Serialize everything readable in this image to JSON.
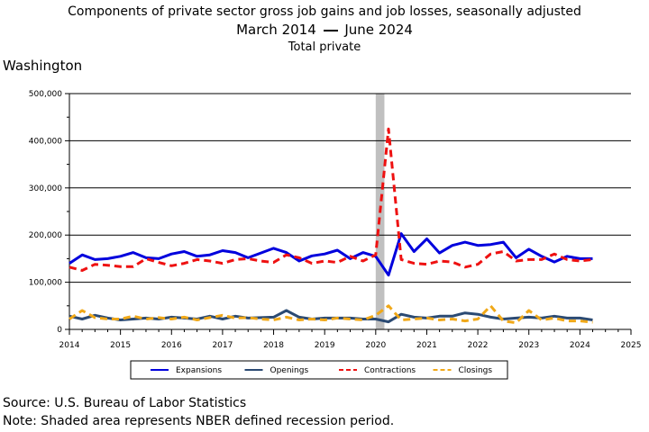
{
  "title": {
    "line1": "Components of private sector gross job gains and job losses, seasonally adjusted",
    "line2_start": "March 2014",
    "line2_end": "June 2024",
    "line3": "Total private"
  },
  "region": "Washington",
  "footer": {
    "source": "Source: U.S. Bureau of Labor Statistics",
    "note": "Note: Shaded area represents NBER defined recession period."
  },
  "colors": {
    "expansions": "#0000dd",
    "openings": "#2b4a73",
    "contractions": "#ee1111",
    "closings": "#f0a818",
    "recession": "#c0c0c0"
  },
  "chart_data": {
    "type": "line",
    "x_unit": "year",
    "xlim": [
      2014,
      2025
    ],
    "ylim": [
      0,
      500000
    ],
    "y_ticks": [
      "0",
      "100,000",
      "200,000",
      "300,000",
      "400,000",
      "500,000"
    ],
    "x_ticks": [
      "2014",
      "2015",
      "2016",
      "2017",
      "2018",
      "2019",
      "2020",
      "2021",
      "2022",
      "2023",
      "2024",
      "2025"
    ],
    "grid": "horizontal",
    "legend_position": "bottom",
    "recession_shading": [
      2020.0,
      2020.17
    ],
    "x": [
      2014.0,
      2014.25,
      2014.5,
      2014.75,
      2015.0,
      2015.25,
      2015.5,
      2015.75,
      2016.0,
      2016.25,
      2016.5,
      2016.75,
      2017.0,
      2017.25,
      2017.5,
      2017.75,
      2018.0,
      2018.25,
      2018.5,
      2018.75,
      2019.0,
      2019.25,
      2019.5,
      2019.75,
      2020.0,
      2020.25,
      2020.5,
      2020.75,
      2021.0,
      2021.25,
      2021.5,
      2021.75,
      2022.0,
      2022.25,
      2022.5,
      2022.75,
      2023.0,
      2023.25,
      2023.5,
      2023.75,
      2024.0,
      2024.25
    ],
    "series": [
      {
        "name": "Expansions",
        "style": "solid",
        "values": [
          140000,
          158000,
          148000,
          150000,
          155000,
          163000,
          152000,
          150000,
          160000,
          165000,
          155000,
          158000,
          167000,
          163000,
          152000,
          162000,
          172000,
          163000,
          145000,
          156000,
          160000,
          168000,
          150000,
          163000,
          155000,
          115000,
          203000,
          165000,
          192000,
          162000,
          178000,
          185000,
          178000,
          180000,
          185000,
          152000,
          170000,
          155000,
          143000,
          155000,
          150000,
          150000
        ]
      },
      {
        "name": "Openings",
        "style": "solid",
        "values": [
          28000,
          22000,
          30000,
          24000,
          20000,
          22000,
          24000,
          22000,
          26000,
          24000,
          22000,
          28000,
          22000,
          28000,
          24000,
          25000,
          26000,
          40000,
          26000,
          22000,
          24000,
          24000,
          24000,
          22000,
          22000,
          16000,
          32000,
          26000,
          24000,
          28000,
          28000,
          35000,
          32000,
          26000,
          22000,
          24000,
          26000,
          24000,
          28000,
          24000,
          24000,
          20000
        ]
      },
      {
        "name": "Contractions",
        "style": "dashed",
        "values": [
          132000,
          125000,
          138000,
          136000,
          133000,
          133000,
          150000,
          142000,
          135000,
          140000,
          148000,
          145000,
          140000,
          148000,
          150000,
          145000,
          142000,
          158000,
          152000,
          140000,
          145000,
          142000,
          155000,
          145000,
          158000,
          425000,
          148000,
          140000,
          138000,
          145000,
          143000,
          132000,
          138000,
          160000,
          165000,
          145000,
          148000,
          148000,
          160000,
          148000,
          145000,
          148000
        ]
      },
      {
        "name": "Closings",
        "style": "dashed",
        "values": [
          22000,
          40000,
          25000,
          22000,
          22000,
          28000,
          22000,
          25000,
          22000,
          26000,
          20000,
          25000,
          30000,
          24000,
          25000,
          22000,
          20000,
          26000,
          20000,
          22000,
          20000,
          24000,
          22000,
          20000,
          30000,
          50000,
          20000,
          22000,
          24000,
          20000,
          22000,
          18000,
          22000,
          50000,
          18000,
          14000,
          40000,
          20000,
          24000,
          18000,
          18000,
          15000
        ]
      }
    ]
  }
}
